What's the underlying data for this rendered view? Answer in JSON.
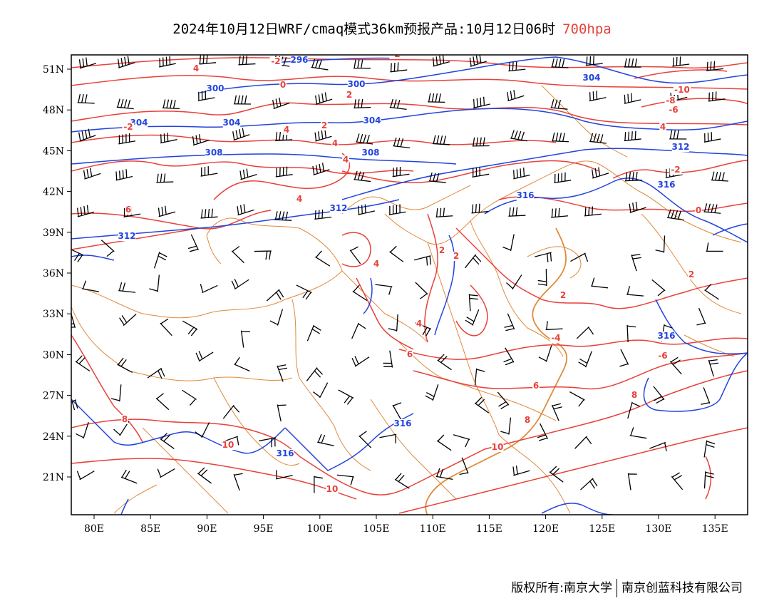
{
  "title": {
    "main": "2024年10月12日WRF/cmaq模式36km预报产品:10月12日06时",
    "level": "700hpa"
  },
  "footer": {
    "copyright_label": "版权所有:南京大学",
    "company": "南京创蓝科技有限公司"
  },
  "axes": {
    "lat_labels": [
      "51N",
      "48N",
      "45N",
      "42N",
      "39N",
      "36N",
      "33N",
      "30N",
      "27N",
      "24N",
      "21N"
    ],
    "lon_labels": [
      "80E",
      "85E",
      "90E",
      "95E",
      "100E",
      "105E",
      "110E",
      "115E",
      "120E",
      "125E",
      "130E",
      "135E"
    ]
  },
  "colors": {
    "temperature": "#e8413a",
    "geopotential": "#2244dd",
    "boundaries": "#e08a3a",
    "wind": "#000000"
  },
  "contour_labels": {
    "geopotential": [
      "296",
      "300",
      "300",
      "304",
      "304",
      "304",
      "304",
      "308",
      "308",
      "312",
      "312",
      "312",
      "316",
      "316",
      "316",
      "316",
      "316"
    ],
    "temperature": [
      "-2",
      "-2",
      "0",
      "2",
      "2",
      "4",
      "4",
      "4",
      "4",
      "4",
      "-2",
      "-6",
      "-8",
      "-10",
      "4",
      "-2",
      "0",
      "6",
      "2",
      "2",
      "4",
      "2",
      "2",
      "-4",
      "6",
      "6",
      "8",
      "8",
      "8",
      "10",
      "10",
      "10",
      "-6",
      "4"
    ]
  }
}
